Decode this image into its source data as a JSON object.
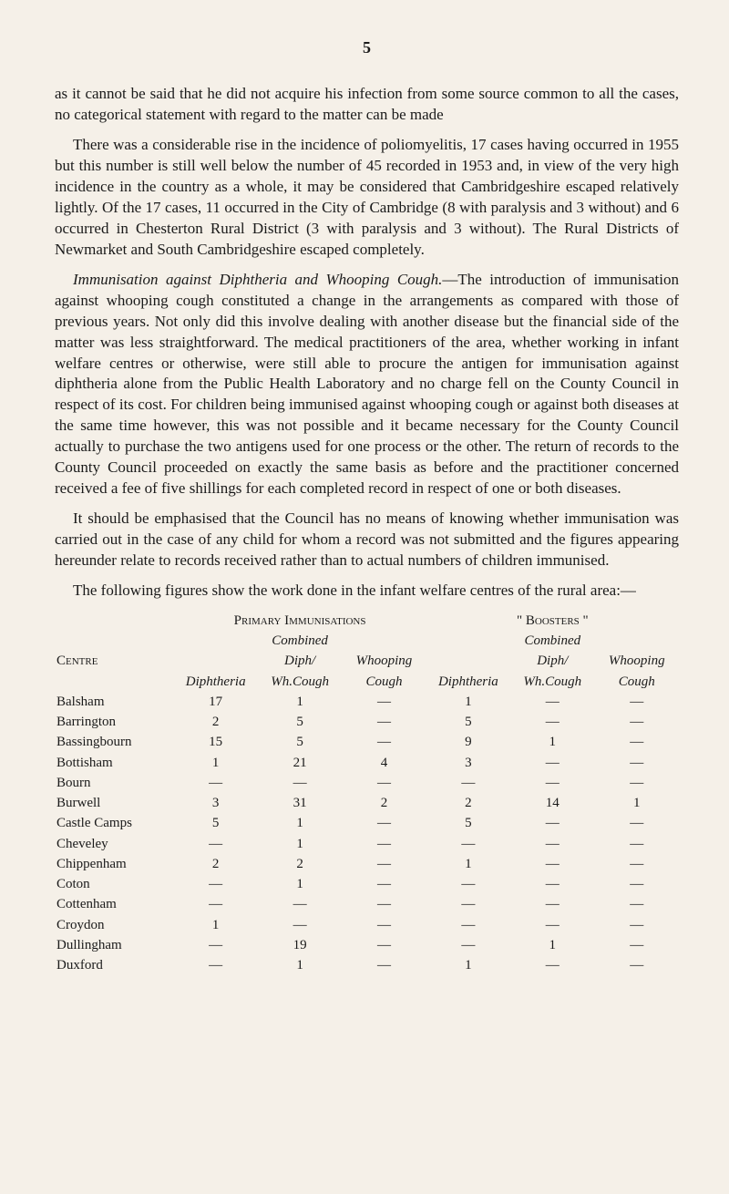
{
  "pageNumber": "5",
  "paragraphs": {
    "p1": "as it cannot be said that he did not acquire his infection from some source common to all the cases, no categorical statement with regard to the matter can be made",
    "p2": "There was a considerable rise in the incidence of poliomyelitis, 17 cases having occurred in 1955 but this number is still well below the number of 45 recorded in 1953 and, in view of the very high incidence in the country as a whole, it may be considered that Cambridgeshire escaped relatively lightly. Of the 17 cases, 11 occurred in the City of Cambridge (8 with paralysis and 3 without) and 6 occurred in Chesterton Rural District (3 with paralysis and 3 without). The Rural Districts of Newmarket and South Cambridgeshire escaped completely.",
    "p3_heading": "Immunisation against Diphtheria and Whooping Cough.",
    "p3_body": "—The introduction of immunisation against whooping cough constituted a change in the arrangements as compared with those of previous years. Not only did this involve dealing with another disease but the financial side of the matter was less straightforward. The medical practitioners of the area, whether working in infant welfare centres or otherwise, were still able to procure the antigen for immunisation against diphtheria alone from the Public Health Laboratory and no charge fell on the County Council in respect of its cost. For children being immunised against whooping cough or against both diseases at the same time however, this was not possible and it became necessary for the County Council actually to purchase the two antigens used for one process or the other. The return of records to the County Council proceeded on exactly the same basis as before and the practitioner concerned received a fee of five shillings for each completed record in respect of one or both diseases.",
    "p4": "It should be emphasised that the Council has no means of knowing whether immunisation was carried out in the case of any child for whom a record was not submitted and the figures appearing hereunder relate to records received rather than to actual numbers of children immunised.",
    "p5": "The following figures show the work done in the infant welfare centres of the rural area:—"
  },
  "table": {
    "group1": "Primary Immunisations",
    "group2": "\" Boosters \"",
    "combined": "Combined",
    "centre": "Centre",
    "diphtheria": "Diphtheria",
    "diphWh": "Diph/",
    "whCough": "Wh.Cough",
    "whooping": "Whooping",
    "cough": "Cough",
    "rows": [
      {
        "name": "Balsham",
        "c1": "17",
        "c2": "1",
        "c3": "—",
        "c4": "1",
        "c5": "—",
        "c6": "—"
      },
      {
        "name": "Barrington",
        "c1": "2",
        "c2": "5",
        "c3": "—",
        "c4": "5",
        "c5": "—",
        "c6": "—"
      },
      {
        "name": "Bassingbourn",
        "c1": "15",
        "c2": "5",
        "c3": "—",
        "c4": "9",
        "c5": "1",
        "c6": "—"
      },
      {
        "name": "Bottisham",
        "c1": "1",
        "c2": "21",
        "c3": "4",
        "c4": "3",
        "c5": "—",
        "c6": "—"
      },
      {
        "name": "Bourn",
        "c1": "—",
        "c2": "—",
        "c3": "—",
        "c4": "—",
        "c5": "—",
        "c6": "—"
      },
      {
        "name": "Burwell",
        "c1": "3",
        "c2": "31",
        "c3": "2",
        "c4": "2",
        "c5": "14",
        "c6": "1"
      },
      {
        "name": "Castle Camps",
        "c1": "5",
        "c2": "1",
        "c3": "—",
        "c4": "5",
        "c5": "—",
        "c6": "—"
      },
      {
        "name": "Cheveley",
        "c1": "—",
        "c2": "1",
        "c3": "—",
        "c4": "—",
        "c5": "—",
        "c6": "—"
      },
      {
        "name": "Chippenham",
        "c1": "2",
        "c2": "2",
        "c3": "—",
        "c4": "1",
        "c5": "—",
        "c6": "—"
      },
      {
        "name": "Coton",
        "c1": "—",
        "c2": "1",
        "c3": "—",
        "c4": "—",
        "c5": "—",
        "c6": "—"
      },
      {
        "name": "Cottenham",
        "c1": "—",
        "c2": "—",
        "c3": "—",
        "c4": "—",
        "c5": "—",
        "c6": "—"
      },
      {
        "name": "Croydon",
        "c1": "1",
        "c2": "—",
        "c3": "—",
        "c4": "—",
        "c5": "—",
        "c6": "—"
      },
      {
        "name": "Dullingham",
        "c1": "—",
        "c2": "19",
        "c3": "—",
        "c4": "—",
        "c5": "1",
        "c6": "—"
      },
      {
        "name": "Duxford",
        "c1": "—",
        "c2": "1",
        "c3": "—",
        "c4": "1",
        "c5": "—",
        "c6": "—"
      }
    ]
  }
}
